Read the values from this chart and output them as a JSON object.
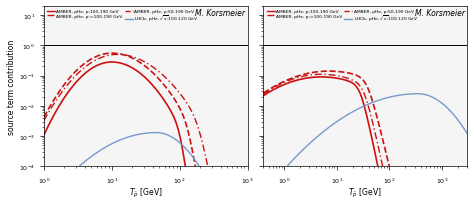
{
  "title": "M. Korsmeier",
  "ylabel": "source term contribution",
  "xlabel_latex": "$T_{\\bar{p}}$ [GeV]",
  "xlim_left": [
    1,
    1000
  ],
  "xlim_right": [
    0.4,
    3000
  ],
  "ylim": [
    0.0001,
    20
  ],
  "hline_y": 1.0,
  "red": "#cc1111",
  "blue": "#7799cc",
  "bg": "#f5f5f5",
  "legend_entries": [
    "AMBER, pHe, p:100-190 GeV",
    "AMBER, pHe, p:50-190 GeV",
    "AMBER, pHe, p:>100-190 GeV",
    "LHCb, pHe, \\u221as:100-120 GeV"
  ]
}
